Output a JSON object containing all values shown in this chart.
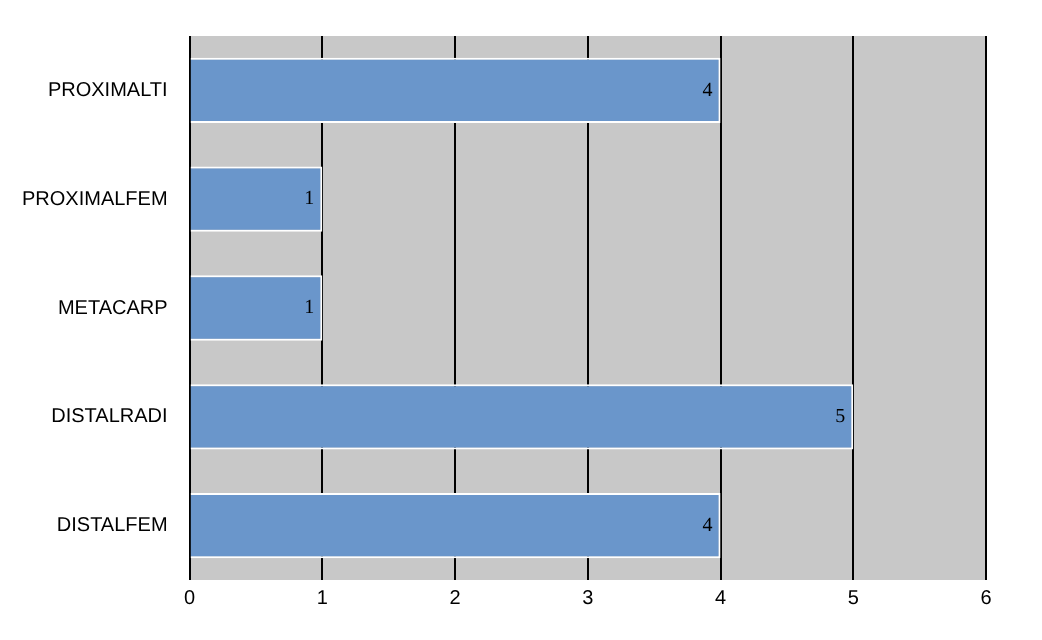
{
  "chart_data": {
    "type": "bar",
    "orientation": "horizontal",
    "categories": [
      "PROXIMALTI",
      "PROXIMALFEM",
      "METACARP",
      "DISTALRADI",
      "DISTALFEM"
    ],
    "values": [
      4,
      1,
      1,
      5,
      4
    ],
    "color": "#6a96cb",
    "xlim": [
      0,
      6
    ],
    "xticks": [
      0,
      1,
      2,
      3,
      4,
      5,
      6
    ],
    "grid": "x",
    "data_labels": true,
    "legend": false
  }
}
